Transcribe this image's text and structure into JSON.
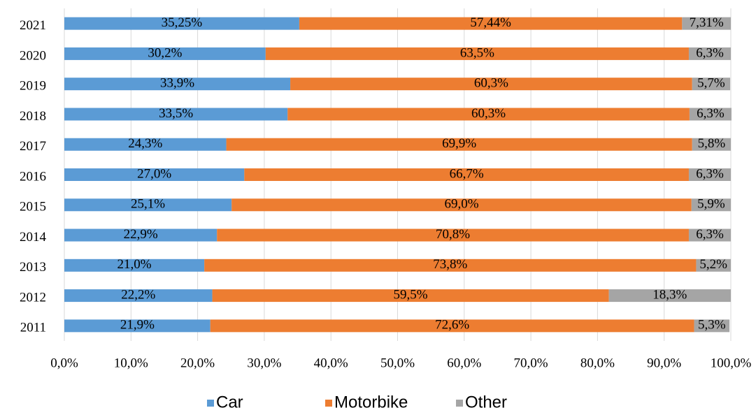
{
  "chart_data": {
    "type": "stacked_bar_horizontal",
    "categories": [
      "2011",
      "2012",
      "2013",
      "2014",
      "2015",
      "2016",
      "2017",
      "2018",
      "2019",
      "2020",
      "2021"
    ],
    "series": [
      {
        "name": "Car",
        "color": "#5b9bd5",
        "values": [
          21.9,
          22.2,
          21.0,
          22.9,
          25.1,
          27.0,
          24.3,
          33.5,
          33.9,
          30.2,
          35.25
        ],
        "value_labels": [
          "21,9%",
          "22,2%",
          "21,0%",
          "22,9%",
          "25,1%",
          "27,0%",
          "24,3%",
          "33,5%",
          "33,9%",
          "30,2%",
          "35,25%"
        ]
      },
      {
        "name": "Motorbike",
        "color": "#ed7d31",
        "values": [
          72.6,
          59.5,
          73.8,
          70.8,
          69.0,
          66.7,
          69.9,
          60.3,
          60.3,
          63.5,
          57.44
        ],
        "value_labels": [
          "72,6%",
          "59,5%",
          "73,8%",
          "70,8%",
          "69,0%",
          "66,7%",
          "69,9%",
          "60,3%",
          "60,3%",
          "63,5%",
          "57,44%"
        ]
      },
      {
        "name": "Other",
        "color": "#a5a5a5",
        "values": [
          5.3,
          18.3,
          5.2,
          6.3,
          5.9,
          6.3,
          5.8,
          6.3,
          5.7,
          6.3,
          7.31
        ],
        "value_labels": [
          "5,3%",
          "18,3%",
          "5,2%",
          "6,3%",
          "5,9%",
          "6,3%",
          "5,8%",
          "6,3%",
          "5,7%",
          "6,3%",
          "7,31%"
        ]
      }
    ],
    "xlim": [
      0,
      100
    ],
    "xticks": [
      {
        "value": 0,
        "label": "0,0%"
      },
      {
        "value": 10,
        "label": "10,0%"
      },
      {
        "value": 20,
        "label": "20,0%"
      },
      {
        "value": 30,
        "label": "30,0%"
      },
      {
        "value": 40,
        "label": "40,0%"
      },
      {
        "value": 50,
        "label": "50,0%"
      },
      {
        "value": 60,
        "label": "60,0%"
      },
      {
        "value": 70,
        "label": "70,0%"
      },
      {
        "value": 80,
        "label": "80,0%"
      },
      {
        "value": 90,
        "label": "90,0%"
      },
      {
        "value": 100,
        "label": "100,0%"
      }
    ],
    "grid": true,
    "legend": "bottom"
  }
}
